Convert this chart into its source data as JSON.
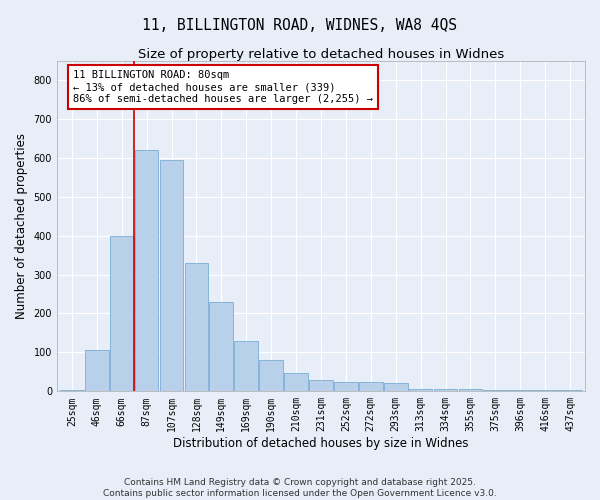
{
  "title_line1": "11, BILLINGTON ROAD, WIDNES, WA8 4QS",
  "title_line2": "Size of property relative to detached houses in Widnes",
  "xlabel": "Distribution of detached houses by size in Widnes",
  "ylabel": "Number of detached properties",
  "categories": [
    "25sqm",
    "46sqm",
    "66sqm",
    "87sqm",
    "107sqm",
    "128sqm",
    "149sqm",
    "169sqm",
    "190sqm",
    "210sqm",
    "231sqm",
    "252sqm",
    "272sqm",
    "293sqm",
    "313sqm",
    "334sqm",
    "355sqm",
    "375sqm",
    "396sqm",
    "416sqm",
    "437sqm"
  ],
  "values": [
    4,
    105,
    400,
    620,
    595,
    330,
    230,
    130,
    80,
    47,
    30,
    25,
    25,
    22,
    5,
    5,
    5,
    4,
    4,
    3,
    4
  ],
  "bar_color": "#b8d0ea",
  "bar_edge_color": "#7aaed4",
  "vline_color": "#cc0000",
  "annotation_text": "11 BILLINGTON ROAD: 80sqm\n← 13% of detached houses are smaller (339)\n86% of semi-detached houses are larger (2,255) →",
  "annotation_box_facecolor": "#ffffff",
  "annotation_box_edgecolor": "#cc0000",
  "ylim": [
    0,
    850
  ],
  "yticks": [
    0,
    100,
    200,
    300,
    400,
    500,
    600,
    700,
    800
  ],
  "bg_color": "#e8eef8",
  "plot_bg_color": "#e8eef8",
  "grid_color": "#ffffff",
  "footer_line1": "Contains HM Land Registry data © Crown copyright and database right 2025.",
  "footer_line2": "Contains public sector information licensed under the Open Government Licence v3.0.",
  "title1_fontsize": 10.5,
  "title2_fontsize": 9.5,
  "axis_label_fontsize": 8.5,
  "tick_fontsize": 7,
  "footer_fontsize": 6.5
}
